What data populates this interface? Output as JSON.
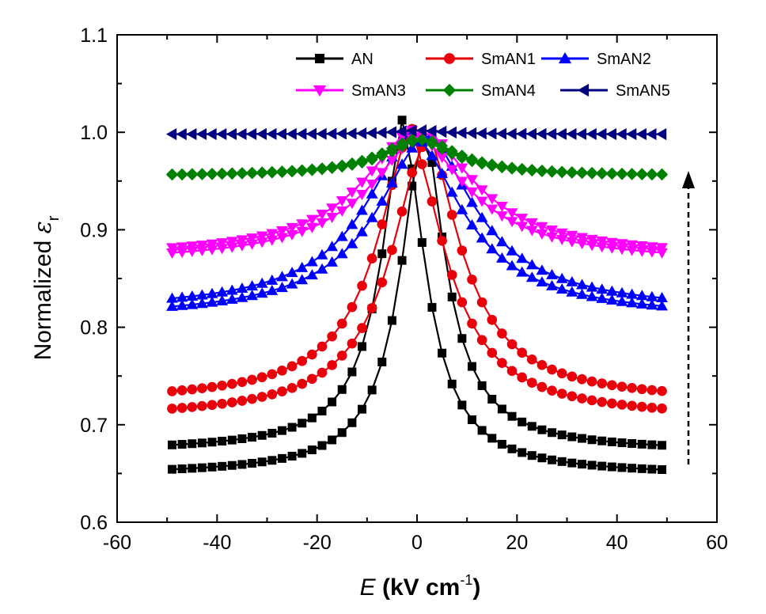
{
  "chart_data": {
    "type": "line",
    "xlabel": {
      "italic": "E",
      "rest": " (kV cm",
      "sup": "-1",
      "close": ")"
    },
    "ylabel": {
      "text": "Normalized ",
      "symbol": "ε",
      "sub": "r"
    },
    "xlim": [
      -60,
      60
    ],
    "ylim": [
      0.6,
      1.1
    ],
    "xticks": [
      -60,
      -40,
      -20,
      0,
      20,
      40,
      60
    ],
    "xtick_labels": [
      "-60",
      "-40",
      "-20",
      "0",
      "20",
      "40",
      "60"
    ],
    "yticks": [
      0.6,
      0.7,
      0.8,
      0.9,
      1.0,
      1.1
    ],
    "ytick_labels": [
      "0.6",
      "0.7",
      "0.8",
      "0.9",
      "1.0",
      "1.1"
    ],
    "grid": false,
    "legend_position": "top-right",
    "annotation": "dashed upward arrow at E = 55 from 0.66 to 0.96",
    "series": [
      {
        "name": "AN",
        "color": "#000000",
        "marker": "square",
        "curve": {
          "baseline": 0.66,
          "peak": 1.005,
          "center_down": -2.5,
          "center_up": 1.0,
          "half_width": 5.5,
          "sep": 3.5
        }
      },
      {
        "name": "SmAN1",
        "color": "#e8000b",
        "marker": "circle",
        "curve": {
          "baseline": 0.714,
          "peak": 0.995,
          "center_down": -1.0,
          "center_up": 1.5,
          "half_width": 8.5,
          "sep": 3.0
        }
      },
      {
        "name": "SmAN2",
        "color": "#0000ff",
        "marker": "triangle-up",
        "curve": {
          "baseline": 0.812,
          "peak": 0.998,
          "center_down": -0.5,
          "center_up": 1.5,
          "half_width": 12.0,
          "sep": 2.0
        }
      },
      {
        "name": "SmAN3",
        "color": "#ff00ff",
        "marker": "triangle-down",
        "curve": {
          "baseline": 0.868,
          "peak": 1.0,
          "center_down": -0.5,
          "center_up": 1.0,
          "half_width": 13.0,
          "sep": 1.8
        }
      },
      {
        "name": "SmAN4",
        "color": "#008000",
        "marker": "diamond",
        "curve": {
          "baseline": 0.955,
          "peak": 0.993,
          "center_down": 0.0,
          "center_up": 1.0,
          "half_width": 9.0,
          "sep": 0.8
        }
      },
      {
        "name": "SmAN5",
        "color": "#000080",
        "marker": "triangle-left",
        "curve": {
          "baseline": 0.998,
          "peak": 1.002,
          "center_down": 0.0,
          "center_up": 1.0,
          "half_width": 6.0,
          "sep": 0.3
        }
      }
    ]
  }
}
